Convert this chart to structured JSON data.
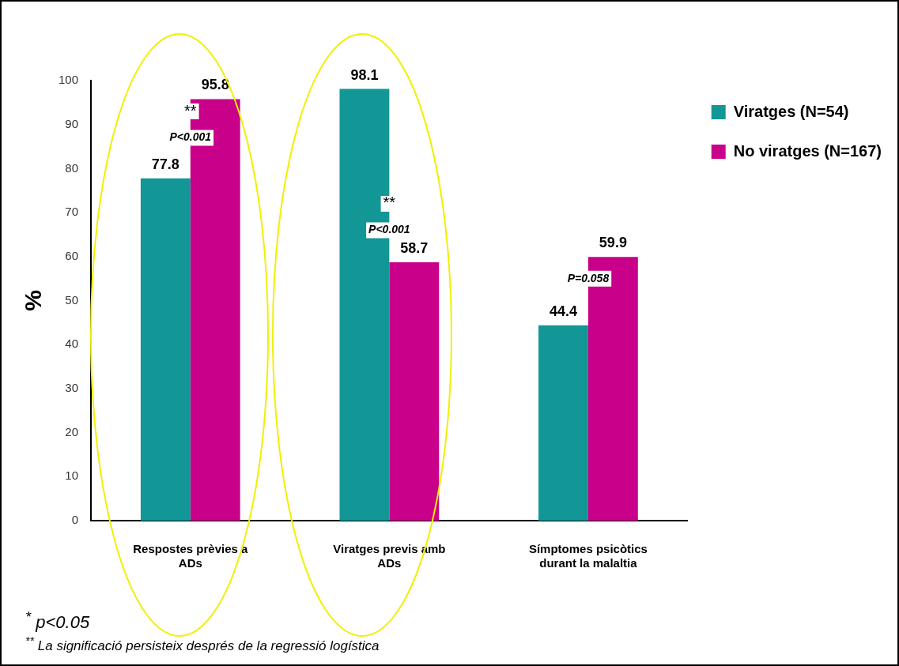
{
  "chart_data": {
    "type": "bar",
    "ylabel": "%",
    "categories": [
      "Respostes prèvies a ADs",
      "Viratges previs amb ADs",
      "Símptomes psicòtics durant la malaltia"
    ],
    "series": [
      {
        "name": "Viratges (N=54)",
        "color": "#139696",
        "values": [
          77.8,
          98.1,
          44.4
        ]
      },
      {
        "name": "No viratges (N=167)",
        "color": "#c8008a",
        "values": [
          95.8,
          58.7,
          59.9
        ]
      }
    ],
    "ylim": [
      0,
      100
    ],
    "yticks": [
      0,
      10,
      20,
      30,
      40,
      50,
      60,
      70,
      80,
      90,
      100
    ],
    "grid": false,
    "legend": "top right",
    "data_labels": true,
    "annotations": [
      {
        "text": "**",
        "x": "Respostes prèvies a ADs",
        "y": 93
      },
      {
        "text": "P<0.001",
        "x": "Respostes prèvies a ADs",
        "y": 87
      },
      {
        "text": "**",
        "x": "Viratges previs amb ADs",
        "y": 72
      },
      {
        "text": "P<0.001",
        "x": "Viratges previs amb ADs",
        "y": 66
      },
      {
        "text": "P=0.058",
        "x": "Símptomes psicòtics durant la malaltia",
        "y": 55
      },
      "$^{*}$ p<0.05",
      "$^{**}$ La significació persisteix després de la regressió logística"
    ]
  }
}
